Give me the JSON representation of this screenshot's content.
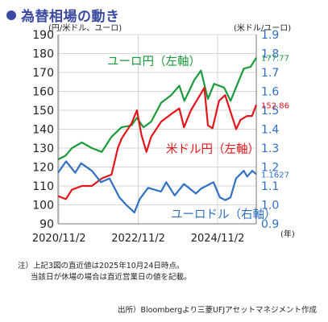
{
  "title": "為替相場の動き",
  "chart_data": {
    "type": "line",
    "left_axis": {
      "label": "(円/米ドル、ユーロ)",
      "min": 90,
      "max": 190,
      "ticks": [
        90,
        100,
        110,
        120,
        130,
        140,
        150,
        160,
        170,
        180,
        190
      ]
    },
    "right_axis": {
      "label": "(米ドル/ユーロ)",
      "min": 0.9,
      "max": 1.9,
      "ticks": [
        "0.9",
        "1.0",
        "1.1",
        "1.2",
        "1.3",
        "1.4",
        "1.5",
        "1.6",
        "1.7",
        "1.8",
        "1.9"
      ]
    },
    "x_axis": {
      "start": "2020-10-24",
      "end": "2025-10-24",
      "ticks": [
        {
          "date": "2020-11-02",
          "label": "2020/11/2"
        },
        {
          "date": "2022-11-02",
          "label": "2022/11/2"
        },
        {
          "date": "2024-11-02",
          "label": "2024/11/2"
        }
      ],
      "unit": "(年)"
    },
    "grid": true,
    "series": [
      {
        "name": "ユーロ円（左軸）",
        "axis": "left",
        "color": "#1a9a3a",
        "end_label": "177.77",
        "points": [
          [
            "2020-10-24",
            124
          ],
          [
            "2021-01-01",
            126
          ],
          [
            "2021-03-01",
            130
          ],
          [
            "2021-06-01",
            133
          ],
          [
            "2021-09-01",
            130
          ],
          [
            "2021-12-01",
            128
          ],
          [
            "2022-03-01",
            136
          ],
          [
            "2022-06-01",
            141
          ],
          [
            "2022-09-01",
            142
          ],
          [
            "2022-10-20",
            146
          ],
          [
            "2022-12-20",
            141
          ],
          [
            "2023-03-01",
            144
          ],
          [
            "2023-06-01",
            154
          ],
          [
            "2023-09-01",
            158
          ],
          [
            "2023-11-15",
            163
          ],
          [
            "2024-01-01",
            155
          ],
          [
            "2024-04-01",
            166
          ],
          [
            "2024-06-01",
            171
          ],
          [
            "2024-08-05",
            156
          ],
          [
            "2024-10-01",
            164
          ],
          [
            "2025-01-01",
            162
          ],
          [
            "2025-03-01",
            155
          ],
          [
            "2025-04-20",
            162
          ],
          [
            "2025-07-01",
            172
          ],
          [
            "2025-09-01",
            173
          ],
          [
            "2025-10-24",
            177.77
          ]
        ]
      },
      {
        "name": "米ドル円（左軸）",
        "axis": "left",
        "color": "#e3151b",
        "end_label": "152.86",
        "points": [
          [
            "2020-10-24",
            104.7
          ],
          [
            "2021-01-04",
            103
          ],
          [
            "2021-03-01",
            108
          ],
          [
            "2021-06-01",
            110
          ],
          [
            "2021-09-01",
            110
          ],
          [
            "2021-12-01",
            114
          ],
          [
            "2022-03-01",
            116
          ],
          [
            "2022-04-28",
            130
          ],
          [
            "2022-06-01",
            135
          ],
          [
            "2022-09-01",
            143
          ],
          [
            "2022-10-21",
            150
          ],
          [
            "2022-12-01",
            137
          ],
          [
            "2023-01-16",
            128
          ],
          [
            "2023-03-01",
            136
          ],
          [
            "2023-06-01",
            144
          ],
          [
            "2023-09-01",
            148
          ],
          [
            "2023-11-15",
            151
          ],
          [
            "2023-12-28",
            141
          ],
          [
            "2024-03-01",
            150
          ],
          [
            "2024-07-03",
            161.9
          ],
          [
            "2024-08-05",
            142
          ],
          [
            "2024-09-16",
            140.5
          ],
          [
            "2024-11-15",
            155
          ],
          [
            "2025-01-10",
            158
          ],
          [
            "2025-04-22",
            140
          ],
          [
            "2025-06-01",
            145
          ],
          [
            "2025-08-01",
            147
          ],
          [
            "2025-09-15",
            147
          ],
          [
            "2025-10-24",
            152.86
          ]
        ]
      },
      {
        "name": "ユーロドル（右軸）",
        "axis": "right",
        "color": "#2f6fc4",
        "end_label": "1.1627",
        "points": [
          [
            "2020-10-24",
            1.17
          ],
          [
            "2021-01-06",
            1.23
          ],
          [
            "2021-03-31",
            1.17
          ],
          [
            "2021-05-25",
            1.22
          ],
          [
            "2021-09-01",
            1.18
          ],
          [
            "2021-11-24",
            1.12
          ],
          [
            "2022-02-10",
            1.14
          ],
          [
            "2022-05-12",
            1.04
          ],
          [
            "2022-07-14",
            1.0
          ],
          [
            "2022-09-28",
            0.96
          ],
          [
            "2022-11-15",
            1.03
          ],
          [
            "2023-02-01",
            1.09
          ],
          [
            "2023-05-31",
            1.07
          ],
          [
            "2023-07-18",
            1.12
          ],
          [
            "2023-10-03",
            1.05
          ],
          [
            "2023-12-28",
            1.11
          ],
          [
            "2024-04-16",
            1.06
          ],
          [
            "2024-06-01",
            1.085
          ],
          [
            "2024-09-25",
            1.12
          ],
          [
            "2024-11-22",
            1.04
          ],
          [
            "2025-01-13",
            1.025
          ],
          [
            "2025-03-01",
            1.04
          ],
          [
            "2025-04-21",
            1.14
          ],
          [
            "2025-07-01",
            1.18
          ],
          [
            "2025-08-01",
            1.15
          ],
          [
            "2025-09-17",
            1.18
          ],
          [
            "2025-10-24",
            1.1627
          ]
        ]
      }
    ],
    "annotations": [
      {
        "text": "ユーロ円（左軸）",
        "color": "#1a9a3a"
      },
      {
        "text": "米ドル円（左軸）",
        "color": "#e3151b"
      },
      {
        "text": "ユーロドル（右軸）",
        "color": "#2f6fc4"
      }
    ]
  },
  "notes": [
    "注）上記3図の直近値は2025年10月24日時点。",
    "当該日が休場の場合は直近営業日の値を記載。"
  ],
  "source": "出所）Bloombergより三菱UFJアセットマネジメント作成"
}
